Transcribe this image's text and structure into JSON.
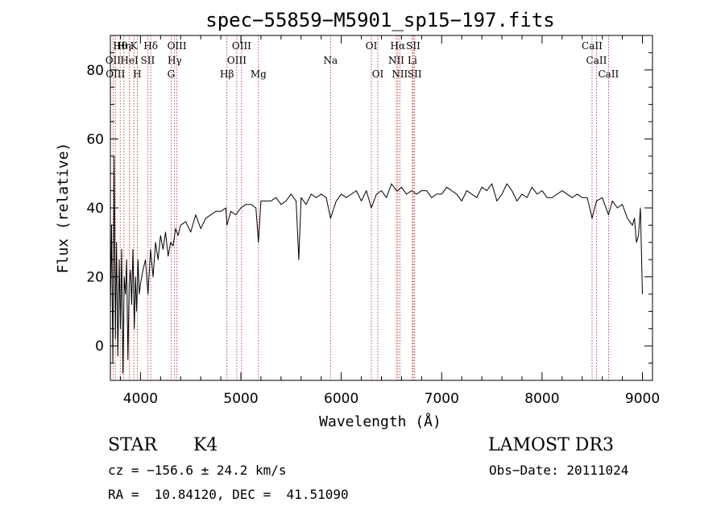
{
  "chart_data": {
    "type": "line",
    "title": "spec−55859−M5901_sp15−197.fits",
    "xlabel": "Wavelength (Å)",
    "ylabel": "Flux (relative)",
    "xlim": [
      3700,
      9100
    ],
    "ylim": [
      -10,
      90
    ],
    "x_ticks": [
      4000,
      5000,
      6000,
      7000,
      8000,
      9000
    ],
    "y_ticks": [
      0,
      20,
      40,
      60,
      80
    ],
    "x_tick_labels": [
      "4000",
      "5000",
      "6000",
      "7000",
      "8000",
      "9000"
    ],
    "y_tick_labels": [
      "0",
      "20",
      "40",
      "60",
      "80"
    ],
    "series": [
      {
        "name": "flux",
        "x": [
          3700,
          3712,
          3725,
          3738,
          3750,
          3762,
          3775,
          3788,
          3800,
          3812,
          3825,
          3838,
          3850,
          3862,
          3875,
          3888,
          3900,
          3912,
          3925,
          3938,
          3950,
          3962,
          3975,
          3988,
          4000,
          4025,
          4050,
          4075,
          4100,
          4125,
          4150,
          4175,
          4200,
          4225,
          4250,
          4275,
          4300,
          4325,
          4350,
          4375,
          4400,
          4450,
          4500,
          4550,
          4600,
          4650,
          4700,
          4750,
          4800,
          4850,
          4861,
          4900,
          4950,
          5000,
          5050,
          5100,
          5150,
          5175,
          5200,
          5250,
          5300,
          5350,
          5400,
          5450,
          5500,
          5550,
          5577,
          5600,
          5650,
          5700,
          5750,
          5800,
          5850,
          5893,
          5950,
          6000,
          6050,
          6100,
          6150,
          6200,
          6250,
          6300,
          6350,
          6400,
          6450,
          6500,
          6550,
          6563,
          6600,
          6650,
          6700,
          6750,
          6800,
          6850,
          6900,
          6950,
          7000,
          7050,
          7100,
          7150,
          7200,
          7250,
          7300,
          7350,
          7400,
          7450,
          7500,
          7550,
          7600,
          7650,
          7700,
          7750,
          7800,
          7850,
          7900,
          7950,
          8000,
          8050,
          8100,
          8150,
          8200,
          8250,
          8300,
          8350,
          8400,
          8450,
          8498,
          8542,
          8600,
          8662,
          8700,
          8750,
          8800,
          8850,
          8900,
          8920,
          8940,
          8960,
          8980,
          9000
        ],
        "y": [
          10,
          35,
          -5,
          55,
          2,
          30,
          -3,
          25,
          5,
          28,
          -8,
          20,
          15,
          25,
          -4,
          18,
          22,
          12,
          28,
          5,
          20,
          10,
          25,
          15,
          18,
          22,
          25,
          15,
          28,
          20,
          30,
          25,
          32,
          28,
          33,
          26,
          30,
          29,
          34,
          32,
          35,
          36,
          33,
          38,
          34,
          37,
          38,
          39,
          39,
          40,
          35,
          39,
          38,
          40,
          41,
          41,
          40,
          30,
          42,
          42,
          42,
          43,
          41,
          42,
          44,
          42,
          25,
          43,
          41,
          44,
          43,
          44,
          43,
          37,
          42,
          44,
          43,
          44,
          45,
          42,
          45,
          40,
          44,
          45,
          43,
          47,
          45,
          45,
          46,
          44,
          45,
          44,
          45,
          45,
          43,
          44,
          44,
          46,
          45,
          44,
          42,
          45,
          44,
          43,
          46,
          45,
          47,
          42,
          44,
          47,
          45,
          42,
          44,
          43,
          46,
          44,
          45,
          43,
          43,
          44,
          45,
          44,
          43,
          44,
          43,
          43,
          37,
          42,
          43,
          38,
          42,
          40,
          41,
          37,
          35,
          37,
          30,
          32,
          40,
          15
        ]
      }
    ],
    "lines": [
      {
        "name": "Hθ",
        "wl": 3798,
        "row": 0
      },
      {
        "name": "Hη",
        "wl": 3835,
        "row": 0
      },
      {
        "name": "K",
        "wl": 3934,
        "row": 0
      },
      {
        "name": "Hδ",
        "wl": 4102,
        "row": 0
      },
      {
        "name": "OIII",
        "wl": 4363,
        "row": 0
      },
      {
        "name": "OIII",
        "wl": 5007,
        "row": 0
      },
      {
        "name": "OI",
        "wl": 6300,
        "row": 0
      },
      {
        "name": "Hα",
        "wl": 6563,
        "row": 0
      },
      {
        "name": "SII",
        "wl": 6717,
        "row": 0
      },
      {
        "name": "CaII",
        "wl": 8498,
        "row": 0
      },
      {
        "name": "OII",
        "wl": 3727,
        "row": 1
      },
      {
        "name": "HeI",
        "wl": 3889,
        "row": 1
      },
      {
        "name": "SII",
        "wl": 4072,
        "row": 1
      },
      {
        "name": "Hγ",
        "wl": 4340,
        "row": 1
      },
      {
        "name": "OIII",
        "wl": 4959,
        "row": 1
      },
      {
        "name": "Na",
        "wl": 5893,
        "row": 1
      },
      {
        "name": "NII",
        "wl": 6548,
        "row": 1
      },
      {
        "name": "Li",
        "wl": 6708,
        "row": 1
      },
      {
        "name": "CaII",
        "wl": 8542,
        "row": 1
      },
      {
        "name": "OIII",
        "wl": 3750,
        "row": 2
      },
      {
        "name": "H",
        "wl": 3968,
        "row": 2
      },
      {
        "name": "G",
        "wl": 4305,
        "row": 2
      },
      {
        "name": "Hβ",
        "wl": 4861,
        "row": 2
      },
      {
        "name": "Mg",
        "wl": 5175,
        "row": 2
      },
      {
        "name": "OI",
        "wl": 6364,
        "row": 2
      },
      {
        "name": "NII",
        "wl": 6583,
        "row": 2
      },
      {
        "name": "SII",
        "wl": 6731,
        "row": 2
      },
      {
        "name": "CaII",
        "wl": 8662,
        "row": 2
      }
    ]
  },
  "info": {
    "class_label": "STAR",
    "subclass": "K4",
    "survey": "LAMOST DR3",
    "redshift": "cz = −156.6 ± 24.2 km/s",
    "obs_date": "Obs−Date: 20111024",
    "coords": "RA =  10.84120, DEC =  41.51090"
  },
  "colors": {
    "spectrum": "#000000",
    "line_marker": "#b22222",
    "axes": "#000000"
  }
}
